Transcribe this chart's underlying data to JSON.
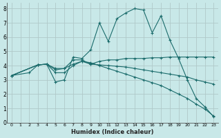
{
  "xlabel": "Humidex (Indice chaleur)",
  "background_color": "#c8e8e8",
  "grid_color": "#b0c8c8",
  "line_color": "#1a6b6b",
  "xlim": [
    -0.5,
    23.5
  ],
  "ylim": [
    0,
    8.4
  ],
  "xticks": [
    0,
    1,
    2,
    3,
    4,
    5,
    6,
    7,
    8,
    9,
    10,
    11,
    12,
    13,
    14,
    15,
    16,
    17,
    18,
    19,
    20,
    21,
    22,
    23
  ],
  "yticks": [
    0,
    1,
    2,
    3,
    4,
    5,
    6,
    7,
    8
  ],
  "lines": [
    {
      "x": [
        0,
        2,
        3,
        4,
        5,
        6,
        7,
        8,
        9,
        10,
        11,
        12,
        13,
        14,
        15,
        16,
        17,
        18,
        19,
        20,
        21,
        22,
        23
      ],
      "y": [
        3.3,
        3.5,
        4.05,
        4.1,
        2.85,
        3.0,
        4.6,
        4.5,
        5.1,
        7.0,
        5.7,
        7.3,
        7.7,
        8.0,
        7.9,
        6.3,
        7.5,
        5.8,
        4.5,
        3.0,
        1.7,
        1.1,
        0.4
      ]
    },
    {
      "x": [
        0,
        3,
        4,
        5,
        6,
        7,
        8,
        9,
        10,
        11,
        12,
        13,
        14,
        15,
        16,
        17,
        18,
        19,
        20,
        21,
        22,
        23
      ],
      "y": [
        3.3,
        4.05,
        4.1,
        3.8,
        3.8,
        4.4,
        4.4,
        4.1,
        4.3,
        4.4,
        4.4,
        4.5,
        4.5,
        4.5,
        4.55,
        4.55,
        4.6,
        4.6,
        4.6,
        4.6,
        4.6,
        4.6
      ]
    },
    {
      "x": [
        0,
        3,
        4,
        5,
        6,
        7,
        8,
        9,
        10,
        11,
        12,
        13,
        14,
        15,
        16,
        17,
        18,
        19,
        20,
        21,
        22,
        23
      ],
      "y": [
        3.3,
        4.05,
        4.1,
        3.5,
        3.5,
        4.0,
        4.3,
        4.1,
        4.05,
        4.0,
        3.95,
        3.9,
        3.8,
        3.7,
        3.6,
        3.5,
        3.4,
        3.3,
        3.2,
        3.0,
        2.85,
        2.7
      ]
    },
    {
      "x": [
        0,
        3,
        4,
        5,
        6,
        7,
        8,
        9,
        10,
        11,
        12,
        13,
        14,
        15,
        16,
        17,
        18,
        19,
        20,
        21,
        22,
        23
      ],
      "y": [
        3.3,
        4.05,
        4.1,
        3.7,
        3.8,
        4.1,
        4.3,
        4.2,
        4.0,
        3.8,
        3.6,
        3.4,
        3.2,
        3.0,
        2.8,
        2.6,
        2.3,
        2.0,
        1.7,
        1.3,
        0.95,
        0.45
      ]
    }
  ]
}
